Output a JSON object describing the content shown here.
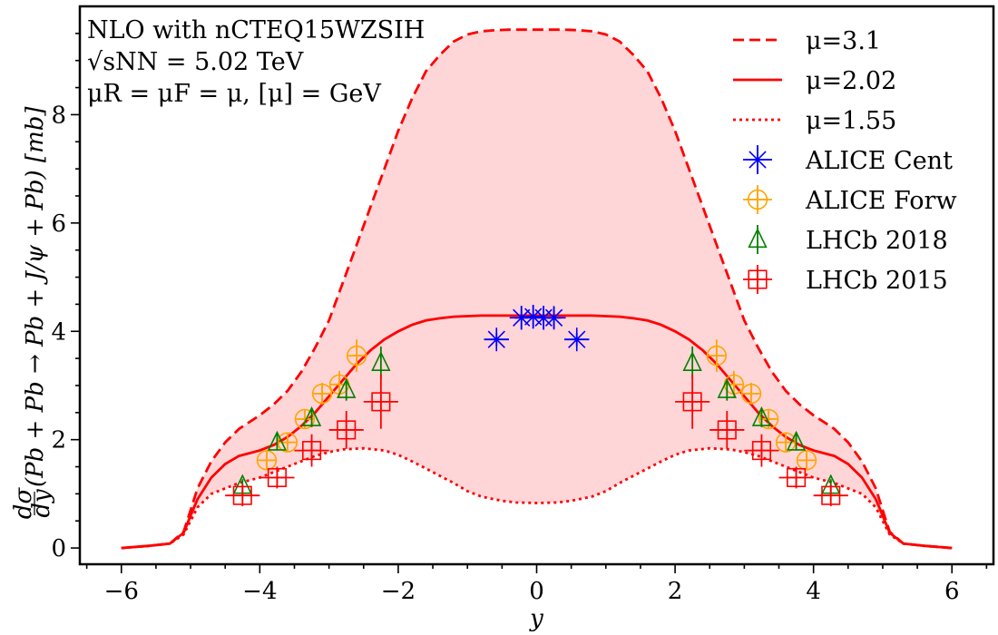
{
  "chart_data": {
    "type": "line",
    "xlabel": "y",
    "ylabel": "dσ/dy (Pb + Pb → Pb + J/ψ + Pb) [mb]",
    "ylabel_fraction": {
      "num": "dσ",
      "den": "dy"
    },
    "ylabel_main": "(Pb + Pb → Pb + J/ψ + Pb) [mb]",
    "xlim": [
      -6.6,
      6.6
    ],
    "ylim": [
      -0.3,
      10.0
    ],
    "xticks": [
      -6,
      -4,
      -2,
      0,
      2,
      4,
      6
    ],
    "xtick_labels": [
      "−6",
      "−4",
      "−2",
      "0",
      "2",
      "4",
      "6"
    ],
    "yticks": [
      0,
      2,
      4,
      6,
      8
    ],
    "ytick_labels": [
      "0",
      "2",
      "4",
      "6",
      "8"
    ],
    "annotations": [
      "NLO with nCTEQ15WZSIH",
      "√sNN = 5.02 TeV",
      "μR = μF = μ, [μ] = GeV"
    ],
    "band": {
      "between": [
        "mu_3.1",
        "mu_1.55"
      ],
      "color": "#ffd6d8"
    },
    "series": [
      {
        "id": "mu_3.1",
        "name": "μ=3.1",
        "style": "dashed",
        "color": "#ff0000",
        "x": [
          -6,
          -5.6,
          -5.3,
          -5.1,
          -5.0,
          -4.9,
          -4.7,
          -4.5,
          -4.3,
          -4.0,
          -3.8,
          -3.6,
          -3.4,
          -3.2,
          -3.0,
          -2.8,
          -2.6,
          -2.4,
          -2.2,
          -2.0,
          -1.8,
          -1.6,
          -1.4,
          -1.2,
          -1.0,
          -0.8,
          -0.6,
          -0.4,
          -0.2,
          0,
          0.2,
          0.4,
          0.6,
          0.8,
          1.0,
          1.2,
          1.4,
          1.6,
          1.8,
          2.0,
          2.2,
          2.4,
          2.6,
          2.8,
          3.0,
          3.2,
          3.4,
          3.6,
          3.8,
          4.0,
          4.3,
          4.5,
          4.7,
          4.9,
          5.0,
          5.1,
          5.3,
          5.6,
          6
        ],
        "y": [
          0,
          0.04,
          0.08,
          0.3,
          0.7,
          1.1,
          1.6,
          1.95,
          2.2,
          2.45,
          2.65,
          2.9,
          3.25,
          3.7,
          4.2,
          4.9,
          5.6,
          6.3,
          7.0,
          7.7,
          8.3,
          8.8,
          9.1,
          9.35,
          9.48,
          9.54,
          9.56,
          9.57,
          9.57,
          9.57,
          9.57,
          9.57,
          9.56,
          9.54,
          9.48,
          9.35,
          9.1,
          8.8,
          8.3,
          7.7,
          7.0,
          6.3,
          5.6,
          4.9,
          4.2,
          3.7,
          3.25,
          2.9,
          2.65,
          2.45,
          2.2,
          1.95,
          1.6,
          1.1,
          0.7,
          0.3,
          0.08,
          0.04,
          0
        ]
      },
      {
        "id": "mu_2.02",
        "name": "μ=2.02",
        "style": "solid",
        "color": "#ff0000",
        "x": [
          -6,
          -5.6,
          -5.3,
          -5.1,
          -5.0,
          -4.9,
          -4.7,
          -4.5,
          -4.3,
          -4.0,
          -3.8,
          -3.6,
          -3.4,
          -3.2,
          -3.0,
          -2.8,
          -2.6,
          -2.4,
          -2.2,
          -2.0,
          -1.8,
          -1.6,
          -1.4,
          -1.2,
          -1.0,
          -0.8,
          -0.5,
          0,
          0.5,
          0.8,
          1.0,
          1.2,
          1.4,
          1.6,
          1.8,
          2.0,
          2.2,
          2.4,
          2.6,
          2.8,
          3.0,
          3.2,
          3.4,
          3.6,
          3.8,
          4.0,
          4.3,
          4.5,
          4.7,
          4.9,
          5.0,
          5.1,
          5.3,
          5.6,
          6
        ],
        "y": [
          0,
          0.04,
          0.08,
          0.28,
          0.6,
          0.9,
          1.3,
          1.55,
          1.7,
          1.8,
          1.9,
          2.05,
          2.25,
          2.5,
          2.8,
          3.1,
          3.4,
          3.65,
          3.85,
          4.0,
          4.12,
          4.2,
          4.24,
          4.27,
          4.28,
          4.29,
          4.29,
          4.29,
          4.29,
          4.29,
          4.28,
          4.27,
          4.24,
          4.2,
          4.12,
          4.0,
          3.85,
          3.65,
          3.4,
          3.1,
          2.8,
          2.5,
          2.25,
          2.05,
          1.9,
          1.8,
          1.7,
          1.55,
          1.3,
          0.9,
          0.6,
          0.28,
          0.08,
          0.04,
          0
        ]
      },
      {
        "id": "mu_1.55",
        "name": "μ=1.55",
        "style": "dotted",
        "color": "#ff0000",
        "x": [
          -6,
          -5.6,
          -5.3,
          -5.1,
          -5.0,
          -4.9,
          -4.7,
          -4.5,
          -4.3,
          -4.0,
          -3.8,
          -3.5,
          -3.2,
          -3.0,
          -2.8,
          -2.5,
          -2.2,
          -2.0,
          -1.8,
          -1.5,
          -1.2,
          -1.0,
          -0.8,
          -0.5,
          -0.3,
          0,
          0.3,
          0.5,
          0.8,
          1.0,
          1.2,
          1.5,
          1.8,
          2.0,
          2.2,
          2.5,
          2.8,
          3.0,
          3.2,
          3.5,
          3.8,
          4.0,
          4.3,
          4.5,
          4.7,
          4.9,
          5.0,
          5.1,
          5.3,
          5.6,
          6
        ],
        "y": [
          0,
          0.04,
          0.08,
          0.25,
          0.5,
          0.75,
          1.0,
          1.1,
          1.2,
          1.3,
          1.4,
          1.55,
          1.7,
          1.77,
          1.82,
          1.84,
          1.8,
          1.72,
          1.6,
          1.4,
          1.2,
          1.05,
          0.95,
          0.87,
          0.84,
          0.83,
          0.84,
          0.87,
          0.95,
          1.05,
          1.2,
          1.4,
          1.6,
          1.72,
          1.8,
          1.84,
          1.82,
          1.77,
          1.7,
          1.55,
          1.4,
          1.3,
          1.2,
          1.1,
          1.0,
          0.75,
          0.5,
          0.25,
          0.08,
          0.04,
          0
        ]
      }
    ],
    "points": [
      {
        "id": "alice_cent",
        "name": "ALICE Cent",
        "marker": "star",
        "color": "#0000ff",
        "data": [
          {
            "x": -0.58,
            "y": 3.85,
            "xerr": 0.18,
            "yerr": 0.12
          },
          {
            "x": -0.22,
            "y": 4.25,
            "xerr": 0.1,
            "yerr": 0.22
          },
          {
            "x": -0.05,
            "y": 4.27,
            "xerr": 0.1,
            "yerr": 0.22
          },
          {
            "x": 0.1,
            "y": 4.25,
            "xerr": 0.1,
            "yerr": 0.22
          },
          {
            "x": 0.25,
            "y": 4.25,
            "xerr": 0.1,
            "yerr": 0.2
          },
          {
            "x": 0.58,
            "y": 3.85,
            "xerr": 0.18,
            "yerr": 0.12
          }
        ]
      },
      {
        "id": "alice_forw",
        "name": "ALICE Forw",
        "marker": "circle-plus",
        "color": "#ffa500",
        "data": [
          {
            "x": -3.9,
            "y": 1.62,
            "xerr": 0.1,
            "yerr": 0.15
          },
          {
            "x": -3.6,
            "y": 1.95,
            "xerr": 0.1,
            "yerr": 0.15
          },
          {
            "x": -3.35,
            "y": 2.38,
            "xerr": 0.1,
            "yerr": 0.18
          },
          {
            "x": -3.1,
            "y": 2.85,
            "xerr": 0.1,
            "yerr": 0.2
          },
          {
            "x": -2.85,
            "y": 3.02,
            "xerr": 0.1,
            "yerr": 0.25
          },
          {
            "x": -2.6,
            "y": 3.55,
            "xerr": 0.1,
            "yerr": 0.3
          },
          {
            "x": 2.6,
            "y": 3.55,
            "xerr": 0.1,
            "yerr": 0.3
          },
          {
            "x": 2.85,
            "y": 3.02,
            "xerr": 0.1,
            "yerr": 0.25
          },
          {
            "x": 3.1,
            "y": 2.85,
            "xerr": 0.1,
            "yerr": 0.2
          },
          {
            "x": 3.35,
            "y": 2.38,
            "xerr": 0.1,
            "yerr": 0.18
          },
          {
            "x": 3.6,
            "y": 1.95,
            "xerr": 0.1,
            "yerr": 0.15
          },
          {
            "x": 3.9,
            "y": 1.62,
            "xerr": 0.1,
            "yerr": 0.15
          }
        ]
      },
      {
        "id": "lhcb_2018",
        "name": "LHCb 2018",
        "marker": "triangle",
        "color": "#008000",
        "data": [
          {
            "x": -4.25,
            "y": 1.15,
            "xerr": 0,
            "yerr": 0.12
          },
          {
            "x": -3.75,
            "y": 1.95,
            "xerr": 0,
            "yerr": 0.15
          },
          {
            "x": -3.25,
            "y": 2.4,
            "xerr": 0,
            "yerr": 0.17
          },
          {
            "x": -2.75,
            "y": 2.92,
            "xerr": 0,
            "yerr": 0.2
          },
          {
            "x": -2.25,
            "y": 3.42,
            "xerr": 0,
            "yerr": 0.3
          },
          {
            "x": 2.25,
            "y": 3.42,
            "xerr": 0,
            "yerr": 0.3
          },
          {
            "x": 2.75,
            "y": 2.92,
            "xerr": 0,
            "yerr": 0.2
          },
          {
            "x": 3.25,
            "y": 2.4,
            "xerr": 0,
            "yerr": 0.17
          },
          {
            "x": 3.75,
            "y": 1.95,
            "xerr": 0,
            "yerr": 0.15
          },
          {
            "x": 4.25,
            "y": 1.15,
            "xerr": 0,
            "yerr": 0.12
          }
        ]
      },
      {
        "id": "lhcb_2015",
        "name": "LHCb 2015",
        "marker": "square-plus",
        "color": "#ff0000",
        "data": [
          {
            "x": -4.25,
            "y": 0.97,
            "xerr": 0.25,
            "yerr": 0.2
          },
          {
            "x": -3.75,
            "y": 1.3,
            "xerr": 0.25,
            "yerr": 0.2
          },
          {
            "x": -3.25,
            "y": 1.8,
            "xerr": 0.25,
            "yerr": 0.3
          },
          {
            "x": -2.75,
            "y": 2.18,
            "xerr": 0.25,
            "yerr": 0.35
          },
          {
            "x": -2.25,
            "y": 2.7,
            "xerr": 0.25,
            "yerr": 0.5
          },
          {
            "x": 2.25,
            "y": 2.7,
            "xerr": 0.25,
            "yerr": 0.5
          },
          {
            "x": 2.75,
            "y": 2.18,
            "xerr": 0.25,
            "yerr": 0.35
          },
          {
            "x": 3.25,
            "y": 1.8,
            "xerr": 0.25,
            "yerr": 0.3
          },
          {
            "x": 3.75,
            "y": 1.3,
            "xerr": 0.25,
            "yerr": 0.2
          },
          {
            "x": 4.25,
            "y": 0.97,
            "xerr": 0.25,
            "yerr": 0.2
          }
        ]
      }
    ]
  }
}
